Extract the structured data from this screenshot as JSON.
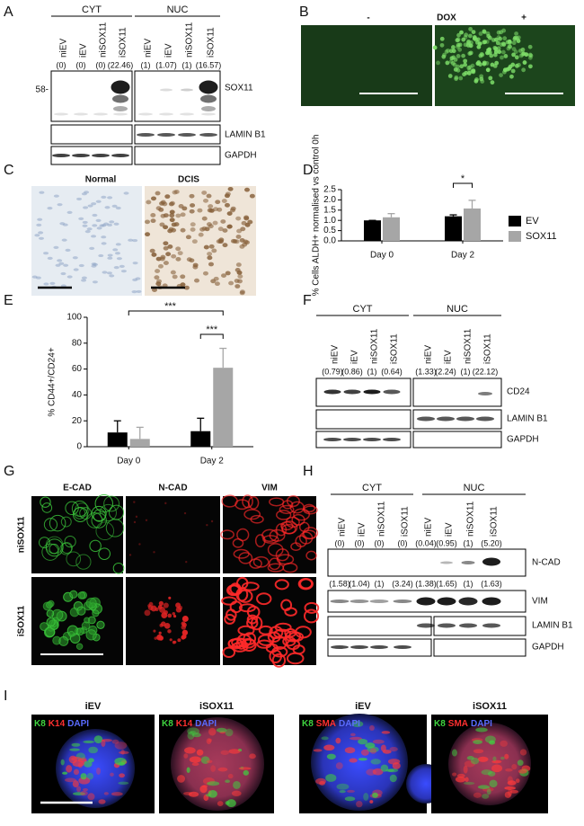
{
  "panels": {
    "A": {
      "label": "A",
      "groups": [
        "CYT",
        "NUC"
      ],
      "lanes": [
        "niEV",
        "iEV",
        "niSOX11",
        "iSOX11",
        "niEV",
        "iEV",
        "niSOX11",
        "iSOX11"
      ],
      "quantification": [
        "(0)",
        "(0)",
        "(0)",
        "(22.46)",
        "(1)",
        "(1.07)",
        "(1)",
        "(16.57)"
      ],
      "marker": "58-",
      "bands": [
        "SOX11",
        "LAMIN B1",
        "GAPDH"
      ]
    },
    "B": {
      "label": "B",
      "conditions": [
        "-",
        "+"
      ],
      "treatment": "DOX"
    },
    "C": {
      "label": "C",
      "titles": [
        "Normal",
        "DCIS"
      ]
    },
    "D": {
      "label": "D"
    },
    "E": {
      "label": "E"
    },
    "F": {
      "label": "F",
      "groups": [
        "CYT",
        "NUC"
      ],
      "lanes": [
        "niEV",
        "iEV",
        "niSOX11",
        "iSOX11",
        "niEV",
        "iEV",
        "niSOX11",
        "iSOX11"
      ],
      "quantification": [
        "(0.79)",
        "(0.86)",
        "(1)",
        "(0.64)",
        "(1.33)",
        "(2.24)",
        "(1)",
        "(22.12)"
      ],
      "bands": [
        "CD24",
        "LAMIN B1",
        "GAPDH"
      ]
    },
    "G": {
      "label": "G",
      "columns": [
        "E-CAD",
        "N-CAD",
        "VIM"
      ],
      "rows": [
        "niSOX11",
        "iSOX11"
      ]
    },
    "H": {
      "label": "H",
      "groups": [
        "CYT",
        "NUC"
      ],
      "lanes": [
        "niEV",
        "iEV",
        "niSOX11",
        "iSOX11",
        "niEV",
        "iEV",
        "niSOX11",
        "iSOX11"
      ],
      "quantification": [
        [
          "(0)",
          "(0)",
          "(0)",
          "(0)",
          "(0.04)",
          "(0.95)",
          "(1)",
          "(5.20)"
        ],
        [
          "(1.58)",
          "(1.04)",
          "(1)",
          "(3.24)",
          "(1.38)",
          "(1.65)",
          "(1)",
          "(1.63)"
        ]
      ],
      "bands": [
        "N-CAD",
        "VIM",
        "LAMIN B1",
        "GAPDH"
      ]
    },
    "I": {
      "label": "I",
      "titles": [
        "iEV",
        "iSOX11",
        "iEV",
        "iSOX11"
      ],
      "stains": [
        [
          {
            "text": "K8",
            "color": "#3fd43f"
          },
          {
            "text": "K14",
            "color": "#ff3030"
          },
          {
            "text": "DAPI",
            "color": "#5a6bff"
          }
        ],
        [
          {
            "text": "K8",
            "color": "#3fd43f"
          },
          {
            "text": "K14",
            "color": "#ff3030"
          },
          {
            "text": "DAPI",
            "color": "#5a6bff"
          }
        ],
        [
          {
            "text": "K8",
            "color": "#3fd43f"
          },
          {
            "text": "SMA",
            "color": "#ff3030"
          },
          {
            "text": "DAPI",
            "color": "#5a6bff"
          }
        ],
        [
          {
            "text": "K8",
            "color": "#3fd43f"
          },
          {
            "text": "SMA",
            "color": "#ff3030"
          },
          {
            "text": "DAPI",
            "color": "#5a6bff"
          }
        ]
      ]
    }
  },
  "chart_data": [
    {
      "type": "bar",
      "ylabel": "% Cells ALDH+ normalised vs control 0h",
      "categories": [
        "Day 0",
        "Day 2"
      ],
      "series": [
        {
          "name": "EV",
          "color": "#000000",
          "values": [
            1.0,
            1.2
          ],
          "errors": [
            0,
            0.07
          ]
        },
        {
          "name": "SOX11",
          "color": "#a6a6a6",
          "values": [
            1.15,
            1.58
          ],
          "errors": [
            0.18,
            0.4
          ]
        }
      ],
      "ylim": [
        0,
        2.5
      ],
      "yticks": [
        {
          "value": 0,
          "label": "0.0"
        },
        0.5,
        {
          "value": 1,
          "label": "1.0"
        },
        1.5,
        {
          "value": 2,
          "label": "2.0"
        },
        2.5
      ],
      "annotations": [
        "*"
      ],
      "legend": "right"
    },
    {
      "type": "bar",
      "ylabel": "% CD44+/CD24+",
      "categories": [
        "Day 0",
        "Day 2"
      ],
      "series": [
        {
          "color": "#000000",
          "values": [
            11,
            12
          ],
          "errors": [
            9,
            10
          ]
        },
        {
          "color": "#a6a6a6",
          "values": [
            6,
            61
          ],
          "errors": [
            9,
            15
          ]
        }
      ],
      "ylim": [
        0,
        100
      ],
      "yticks": [
        0,
        20,
        40,
        60,
        80,
        100
      ],
      "annotations": [
        "***",
        "***"
      ]
    }
  ]
}
